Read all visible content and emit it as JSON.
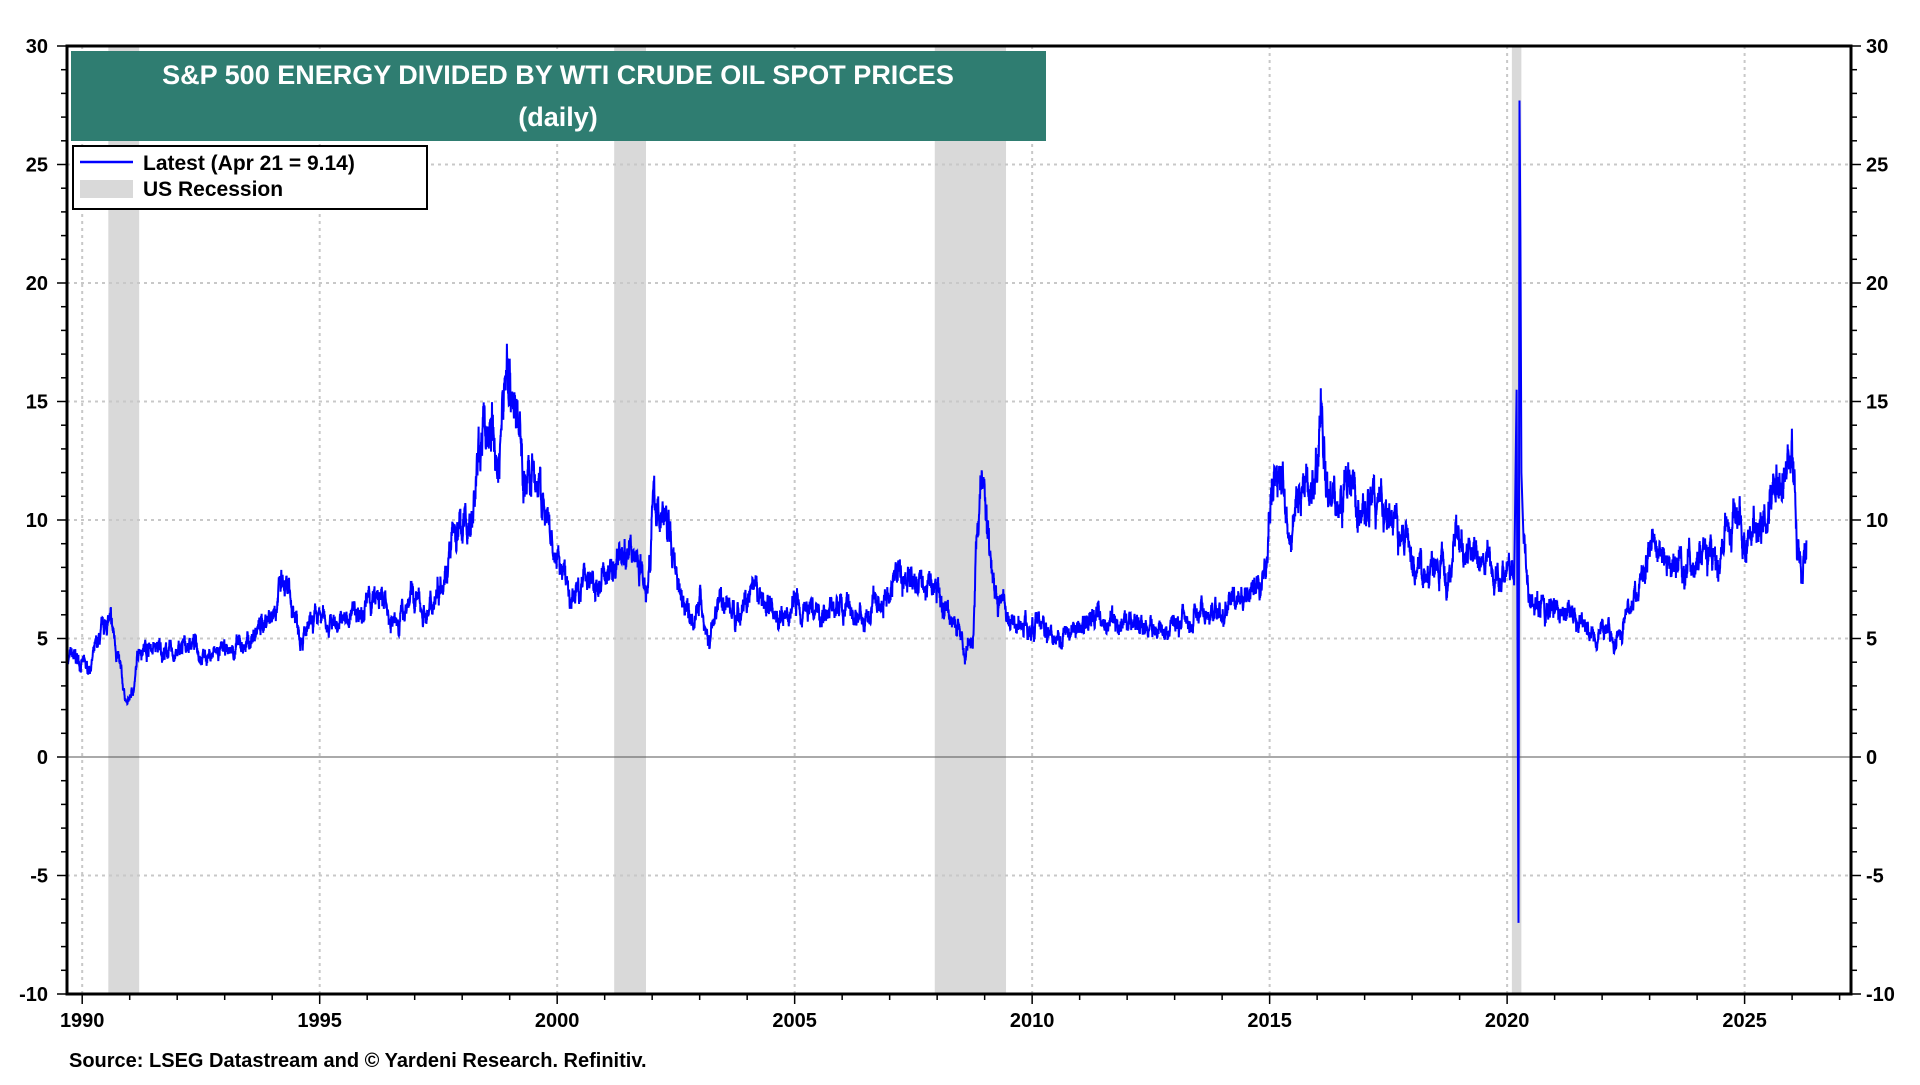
{
  "chart_data": {
    "type": "line",
    "title": "S&P 500 ENERGY DIVIDED BY WTI CRUDE OIL SPOT PRICES",
    "subtitle": "(daily)",
    "source": "Source: LSEG Datastream and © Yardeni Research. Refinitiv.",
    "xlim": [
      1989.68,
      2027.24
    ],
    "ylim": [
      -10,
      30
    ],
    "x_ticks": [
      1990,
      1995,
      2000,
      2005,
      2010,
      2015,
      2020,
      2025
    ],
    "x_tick_labels": [
      "1990",
      "1995",
      "2000",
      "2005",
      "2010",
      "2015",
      "2020",
      "2025"
    ],
    "y_ticks": [
      -10,
      -5,
      0,
      5,
      10,
      15,
      20,
      25,
      30
    ],
    "y_tick_labels": [
      "-10",
      "-5",
      "0",
      "5",
      "10",
      "15",
      "20",
      "25",
      "30"
    ],
    "grid": true,
    "dual_y_axis": true,
    "legend_placement": "top-left",
    "legend": [
      {
        "label": "Latest (Apr 21 = 9.14)",
        "type": "line",
        "color": "#0000ff"
      },
      {
        "label": "US Recession",
        "type": "band",
        "color": "#d9d9d9"
      }
    ],
    "recessions": [
      [
        1990.55,
        1991.2
      ],
      [
        2001.2,
        2001.87
      ],
      [
        2007.95,
        2009.45
      ],
      [
        2020.1,
        2020.3
      ]
    ],
    "series": [
      {
        "color": "#0000ff",
        "x": [
          1989.7,
          1990.0,
          1990.1,
          1990.4,
          1990.55,
          1990.7,
          1990.85,
          1990.95,
          1991.1,
          1991.2,
          1991.5,
          1992.0,
          1992.3,
          1992.6,
          1993.0,
          1993.5,
          1994.0,
          1994.2,
          1994.5,
          1994.7,
          1995.0,
          1995.5,
          1996.0,
          1996.3,
          1996.6,
          1996.9,
          1997.3,
          1997.6,
          1997.9,
          1998.2,
          1998.4,
          1998.6,
          1998.75,
          1998.95,
          1999.1,
          1999.3,
          1999.6,
          1999.9,
          2000.2,
          2000.3,
          2000.6,
          2000.8,
          2001.0,
          2001.3,
          2001.7,
          2001.9,
          2002.0,
          2002.3,
          2002.5,
          2002.8,
          2003.0,
          2003.2,
          2003.4,
          2003.8,
          2004.0,
          2004.5,
          2004.8,
          2005.0,
          2005.5,
          2006.0,
          2006.5,
          2006.9,
          2007.2,
          2007.5,
          2007.8,
          2008.1,
          2008.4,
          2008.6,
          2008.75,
          2008.85,
          2008.95,
          2009.1,
          2009.3,
          2009.5,
          2010.0,
          2010.5,
          2011.0,
          2011.5,
          2011.8,
          2012.3,
          2012.8,
          2013.2,
          2013.6,
          2014.0,
          2014.3,
          2014.6,
          2014.9,
          2015.05,
          2015.2,
          2015.5,
          2015.8,
          2016.0,
          2016.1,
          2016.3,
          2016.6,
          2016.9,
          2017.2,
          2017.6,
          2018.0,
          2018.5,
          2018.8,
          2018.9,
          2019.1,
          2019.5,
          2019.8,
          2020.05,
          2020.15,
          2020.2,
          2020.24,
          2020.26,
          2020.28,
          2020.3,
          2020.35,
          2020.45,
          2020.8,
          2021.0,
          2021.5,
          2021.8,
          2022.0,
          2022.4,
          2022.6,
          2022.8,
          2023.0,
          2023.5,
          2023.8,
          2024.0,
          2024.5,
          2024.9,
          2025.1,
          2025.4,
          2025.7,
          2026.0,
          2026.05,
          2026.1,
          2026.2,
          2026.3
        ],
        "y": [
          4.2,
          4.0,
          3.6,
          5.0,
          5.8,
          4.8,
          3.0,
          2.2,
          3.0,
          4.8,
          4.6,
          4.3,
          4.9,
          4.3,
          4.4,
          4.8,
          6.2,
          7.2,
          6.0,
          5.1,
          5.8,
          5.7,
          6.5,
          6.6,
          5.5,
          6.8,
          6.0,
          8.0,
          9.5,
          10.0,
          13.5,
          14.0,
          12.0,
          17.0,
          15.0,
          12.0,
          11.5,
          8.5,
          7.5,
          6.3,
          8.0,
          7.0,
          7.5,
          8.6,
          8.5,
          7.4,
          10.5,
          10.0,
          8.0,
          6.0,
          6.5,
          4.8,
          6.8,
          6.0,
          6.7,
          6.5,
          5.5,
          6.6,
          6.2,
          6.3,
          5.7,
          6.8,
          7.8,
          7.5,
          7.4,
          6.5,
          5.5,
          4.5,
          4.8,
          10.0,
          11.5,
          9.0,
          6.7,
          5.8,
          5.6,
          5.2,
          5.5,
          6.0,
          5.6,
          5.5,
          5.2,
          6.0,
          6.2,
          5.9,
          6.7,
          6.5,
          7.5,
          11.8,
          11.0,
          9.8,
          11.5,
          12.0,
          15.2,
          11.0,
          11.4,
          10.2,
          10.6,
          10.0,
          8.6,
          7.5,
          7.9,
          9.3,
          8.3,
          8.0,
          7.6,
          8.0,
          7.5,
          15.5,
          -7.0,
          27.7,
          22.0,
          12.0,
          9.0,
          7.0,
          6.0,
          6.2,
          5.8,
          5.3,
          5.5,
          5.0,
          6.5,
          7.5,
          8.8,
          8.5,
          8.0,
          8.6,
          8.8,
          10.0,
          9.0,
          9.8,
          11.5,
          12.8,
          11.5,
          9.0,
          8.2,
          9.14
        ]
      }
    ]
  }
}
